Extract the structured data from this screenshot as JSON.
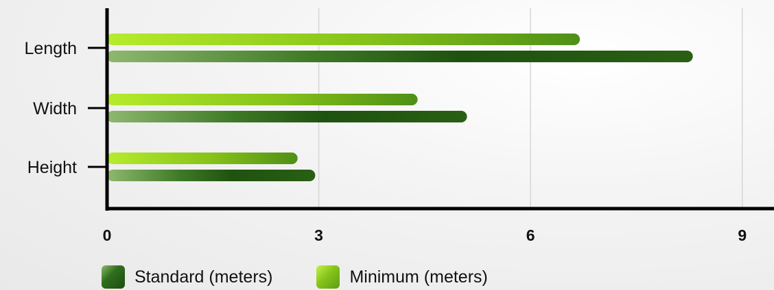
{
  "chart_data": {
    "type": "bar",
    "orientation": "horizontal",
    "categories": [
      "Length",
      "Width",
      "Height"
    ],
    "series": [
      {
        "name": "Minimum (meters)",
        "values": [
          6.7,
          4.4,
          2.7
        ],
        "color": "#7ebf1e"
      },
      {
        "name": "Standard (meters)",
        "values": [
          8.3,
          5.1,
          2.95
        ],
        "color": "#2a6516"
      }
    ],
    "xlim": [
      0,
      9.45
    ],
    "xticks": [
      "0",
      "3",
      "6",
      "9"
    ],
    "grid": true,
    "legend_placement": "bottom-left"
  },
  "legend": {
    "standard_label": "Standard (meters)",
    "minimum_label": "Minimum (meters)"
  }
}
